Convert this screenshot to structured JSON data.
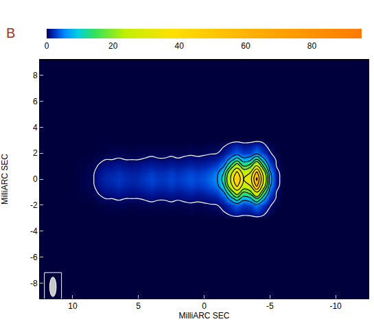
{
  "chart_data": {
    "type": "heatmap",
    "panel_label": "B",
    "x_label": "MilliARC SEC",
    "y_label": "MilliARC SEC",
    "x": [
      -12,
      -10,
      -8,
      -6,
      -5.5,
      -5,
      -4.5,
      -4,
      -3.5,
      -3,
      -2.5,
      -2,
      -1.5,
      -1,
      -0.5,
      0,
      0.5,
      1,
      1.5,
      2,
      2.5,
      3,
      3.5,
      4,
      4.5,
      5,
      5.5,
      6,
      6.5,
      7,
      7.5,
      8,
      8.5,
      10,
      12
    ],
    "y": [
      -9,
      -6,
      -3,
      -2,
      -1.5,
      -1,
      -0.5,
      0,
      0.5,
      1,
      1.5,
      2,
      3,
      6,
      9
    ],
    "z": [
      [
        0,
        0,
        0,
        0,
        0,
        0,
        0,
        0,
        0,
        0,
        0,
        0,
        0,
        0,
        0,
        0,
        0,
        0,
        0,
        0,
        0,
        0,
        0,
        0,
        0,
        0,
        0,
        0,
        0,
        0,
        0,
        0,
        0,
        0,
        0
      ],
      [
        0,
        0,
        0,
        0,
        0,
        0,
        0,
        0,
        0,
        0,
        0,
        0,
        0,
        0,
        0,
        0,
        0,
        0,
        0,
        0,
        0,
        0,
        0,
        0,
        0,
        0,
        0,
        0,
        0,
        0,
        0,
        0,
        0,
        0,
        0
      ],
      [
        0,
        0,
        0,
        0,
        0,
        0,
        0,
        0,
        0,
        0,
        0,
        0,
        0,
        0,
        0,
        0,
        0,
        0,
        0,
        0,
        0,
        0,
        0,
        0,
        0,
        0,
        0,
        0,
        0,
        0,
        0,
        0,
        0,
        0,
        0
      ],
      [
        0,
        0,
        0,
        0,
        0.1,
        0.6,
        2.4,
        5,
        2.8,
        2.4,
        4,
        2.4,
        1,
        0.5,
        0.4,
        0.3,
        0.2,
        0.3,
        0.2,
        0.2,
        0.2,
        0.2,
        0.2,
        0.2,
        0.2,
        0.2,
        0.1,
        0.2,
        0.2,
        0.2,
        0.1,
        0.1,
        0,
        0,
        0
      ],
      [
        0,
        0,
        0,
        0,
        0.3,
        2,
        7.5,
        15.5,
        8.8,
        7.5,
        12.5,
        7.5,
        3,
        1.5,
        1.1,
        0.9,
        0.8,
        0.9,
        0.8,
        0.6,
        0.8,
        0.6,
        0.6,
        0.8,
        0.6,
        0.5,
        0.5,
        0.5,
        0.6,
        0.5,
        0.5,
        0.3,
        0.1,
        0,
        0
      ],
      [
        0,
        0,
        0,
        0,
        0.5,
        4,
        15,
        31,
        17.5,
        15,
        25,
        15,
        6,
        3,
        2.3,
        1.8,
        1.5,
        1.8,
        1.5,
        1.3,
        1.5,
        1.3,
        1.3,
        1.5,
        1.3,
        1,
        0.9,
        1,
        1.3,
        1,
        0.9,
        0.6,
        0.2,
        0,
        0
      ],
      [
        0,
        0,
        0,
        0,
        0.9,
        6.8,
        25.5,
        52.7,
        29.8,
        25.5,
        42.5,
        25.5,
        10.2,
        5.1,
        3.8,
        3,
        2.6,
        3,
        2.6,
        2.1,
        2.6,
        2.1,
        2.1,
        2.6,
        2.1,
        1.7,
        1.5,
        1.7,
        2.1,
        1.7,
        1.5,
        1,
        0.3,
        0,
        0
      ],
      [
        0,
        0,
        0,
        0,
        1,
        8,
        30,
        62,
        35,
        30,
        50,
        30,
        12,
        6,
        4.5,
        3.5,
        3,
        3.5,
        3,
        2.5,
        3,
        2.5,
        2.5,
        3,
        2.5,
        2,
        1.8,
        2,
        2.5,
        2,
        1.8,
        1.2,
        0.3,
        0,
        0
      ],
      [
        0,
        0,
        0,
        0,
        0.9,
        6.8,
        25.5,
        52.7,
        29.8,
        25.5,
        42.5,
        25.5,
        10.2,
        5.1,
        3.8,
        3,
        2.6,
        3,
        2.6,
        2.1,
        2.6,
        2.1,
        2.1,
        2.6,
        2.1,
        1.7,
        1.5,
        1.7,
        2.1,
        1.7,
        1.5,
        1,
        0.3,
        0,
        0
      ],
      [
        0,
        0,
        0,
        0,
        0.5,
        4,
        15,
        31,
        17.5,
        15,
        25,
        15,
        6,
        3,
        2.3,
        1.8,
        1.5,
        1.8,
        1.5,
        1.3,
        1.5,
        1.3,
        1.3,
        1.5,
        1.3,
        1,
        0.9,
        1,
        1.3,
        1,
        0.9,
        0.6,
        0.2,
        0,
        0
      ],
      [
        0,
        0,
        0,
        0,
        0.3,
        2,
        7.5,
        15.5,
        8.8,
        7.5,
        12.5,
        7.5,
        3,
        1.5,
        1.1,
        0.9,
        0.8,
        0.9,
        0.8,
        0.6,
        0.8,
        0.6,
        0.6,
        0.8,
        0.6,
        0.5,
        0.5,
        0.5,
        0.6,
        0.5,
        0.5,
        0.3,
        0.1,
        0,
        0
      ],
      [
        0,
        0,
        0,
        0,
        0.1,
        0.6,
        2.4,
        5,
        2.8,
        2.4,
        4,
        2.4,
        1,
        0.5,
        0.4,
        0.3,
        0.2,
        0.3,
        0.2,
        0.2,
        0.2,
        0.2,
        0.2,
        0.2,
        0.2,
        0.2,
        0.1,
        0.2,
        0.2,
        0.2,
        0.1,
        0.1,
        0,
        0,
        0
      ],
      [
        0,
        0,
        0,
        0,
        0,
        0,
        0,
        0,
        0,
        0,
        0,
        0,
        0,
        0,
        0,
        0,
        0,
        0,
        0,
        0,
        0,
        0,
        0,
        0,
        0,
        0,
        0,
        0,
        0,
        0,
        0,
        0,
        0,
        0,
        0
      ],
      [
        0,
        0,
        0,
        0,
        0,
        0,
        0,
        0,
        0,
        0,
        0,
        0,
        0,
        0,
        0,
        0,
        0,
        0,
        0,
        0,
        0,
        0,
        0,
        0,
        0,
        0,
        0,
        0,
        0,
        0,
        0,
        0,
        0,
        0,
        0
      ],
      [
        0,
        0,
        0,
        0,
        0,
        0,
        0,
        0,
        0,
        0,
        0,
        0,
        0,
        0,
        0,
        0,
        0,
        0,
        0,
        0,
        0,
        0,
        0,
        0,
        0,
        0,
        0,
        0,
        0,
        0,
        0,
        0,
        0,
        0,
        0
      ]
    ],
    "xlim": [
      12.5,
      -12.5
    ],
    "ylim": [
      -9.2,
      9.2
    ],
    "xticks": [
      10,
      5,
      0,
      -5,
      -10
    ],
    "yticks": [
      -8,
      -6,
      -4,
      -2,
      0,
      2,
      4,
      6,
      8
    ],
    "colorbar": {
      "range": [
        0,
        95
      ],
      "ticks": [
        0,
        20,
        40,
        60,
        80
      ]
    },
    "contour_levels": [
      0.5,
      6,
      10,
      15,
      20,
      30,
      40,
      50,
      60
    ],
    "beam": {
      "x": 11.5,
      "y": -8.3,
      "major": 1.5,
      "minor": 0.5
    }
  }
}
